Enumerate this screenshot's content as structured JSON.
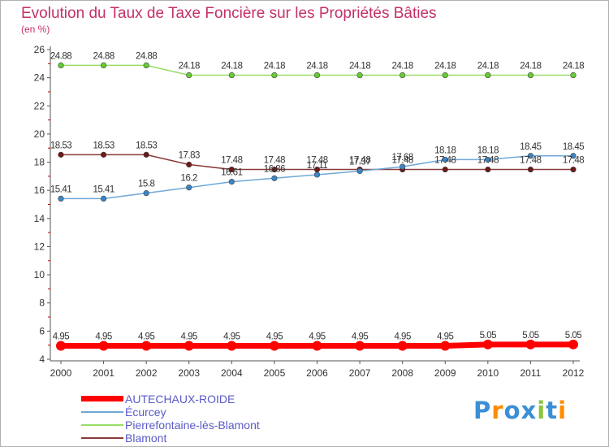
{
  "chart_data": {
    "type": "line",
    "title": "Evolution du Taux de Taxe Foncière sur les Propriétés Bâties",
    "ylabel": "(en %)",
    "xlabel": "",
    "x": [
      "2000",
      "2001",
      "2002",
      "2003",
      "2004",
      "2005",
      "2006",
      "2007",
      "2008",
      "2009",
      "2010",
      "2011",
      "2012"
    ],
    "ylim": [
      4,
      26
    ],
    "yticks": [
      4,
      6,
      8,
      10,
      12,
      14,
      16,
      18,
      20,
      22,
      24,
      26
    ],
    "grid": false,
    "legend_position": "bottom-left",
    "series": [
      {
        "name": "AUTECHAUX-ROIDE",
        "color": "#ff0000",
        "point_color": "#ff0000",
        "values": [
          4.95,
          4.95,
          4.95,
          4.95,
          4.95,
          4.95,
          4.95,
          4.95,
          4.95,
          4.95,
          5.05,
          5.05,
          5.05
        ],
        "labels": [
          "4.95",
          "4.95",
          "4.95",
          "4.95",
          "4.95",
          "4.95",
          "4.95",
          "4.95",
          "4.95",
          "4.95",
          "5.05",
          "5.05",
          "5.05"
        ]
      },
      {
        "name": "Écurcey",
        "color": "#6fa8d6",
        "point_color": "#3a85c4",
        "values": [
          15.41,
          15.41,
          15.8,
          16.2,
          16.61,
          16.86,
          17.11,
          17.37,
          17.68,
          18.18,
          18.18,
          18.45,
          18.45
        ],
        "labels": [
          "15.41",
          "15.41",
          "15.8",
          "16.2",
          "16.61",
          "16.86",
          "17.11",
          "17.37",
          "17.68",
          "18.18",
          "18.18",
          "18.45",
          "18.45"
        ]
      },
      {
        "name": "Pierrefontaine-lès-Blamont",
        "color": "#99dd66",
        "point_color": "#66cc33",
        "values": [
          24.88,
          24.88,
          24.88,
          24.18,
          24.18,
          24.18,
          24.18,
          24.18,
          24.18,
          24.18,
          24.18,
          24.18,
          24.18
        ],
        "labels": [
          "24.88",
          "24.88",
          "24.88",
          "24.18",
          "24.18",
          "24.18",
          "24.18",
          "24.18",
          "24.18",
          "24.18",
          "24.18",
          "24.18",
          "24.18"
        ]
      },
      {
        "name": "Blamont",
        "color": "#8a3a3a",
        "point_color": "#6a1a1a",
        "values": [
          18.53,
          18.53,
          18.53,
          17.83,
          17.48,
          17.48,
          17.48,
          17.48,
          17.48,
          17.48,
          17.48,
          17.48,
          17.48
        ],
        "labels": [
          "18.53",
          "18.53",
          "18.53",
          "17.83",
          "17.48",
          "17.48",
          "17.48",
          "17.48",
          "17.48",
          "17.48",
          "17.48",
          "17.48",
          "17.48"
        ]
      }
    ]
  },
  "logo": {
    "text": "Proxiti",
    "letters": [
      "P",
      "r",
      "o",
      "x",
      "i",
      "t",
      "i"
    ],
    "colors": [
      "#3a8fd6",
      "#ff8c00",
      "#3a8fd6",
      "#3a8fd6",
      "#8ac63c",
      "#3a8fd6",
      "#ff8c00"
    ]
  }
}
